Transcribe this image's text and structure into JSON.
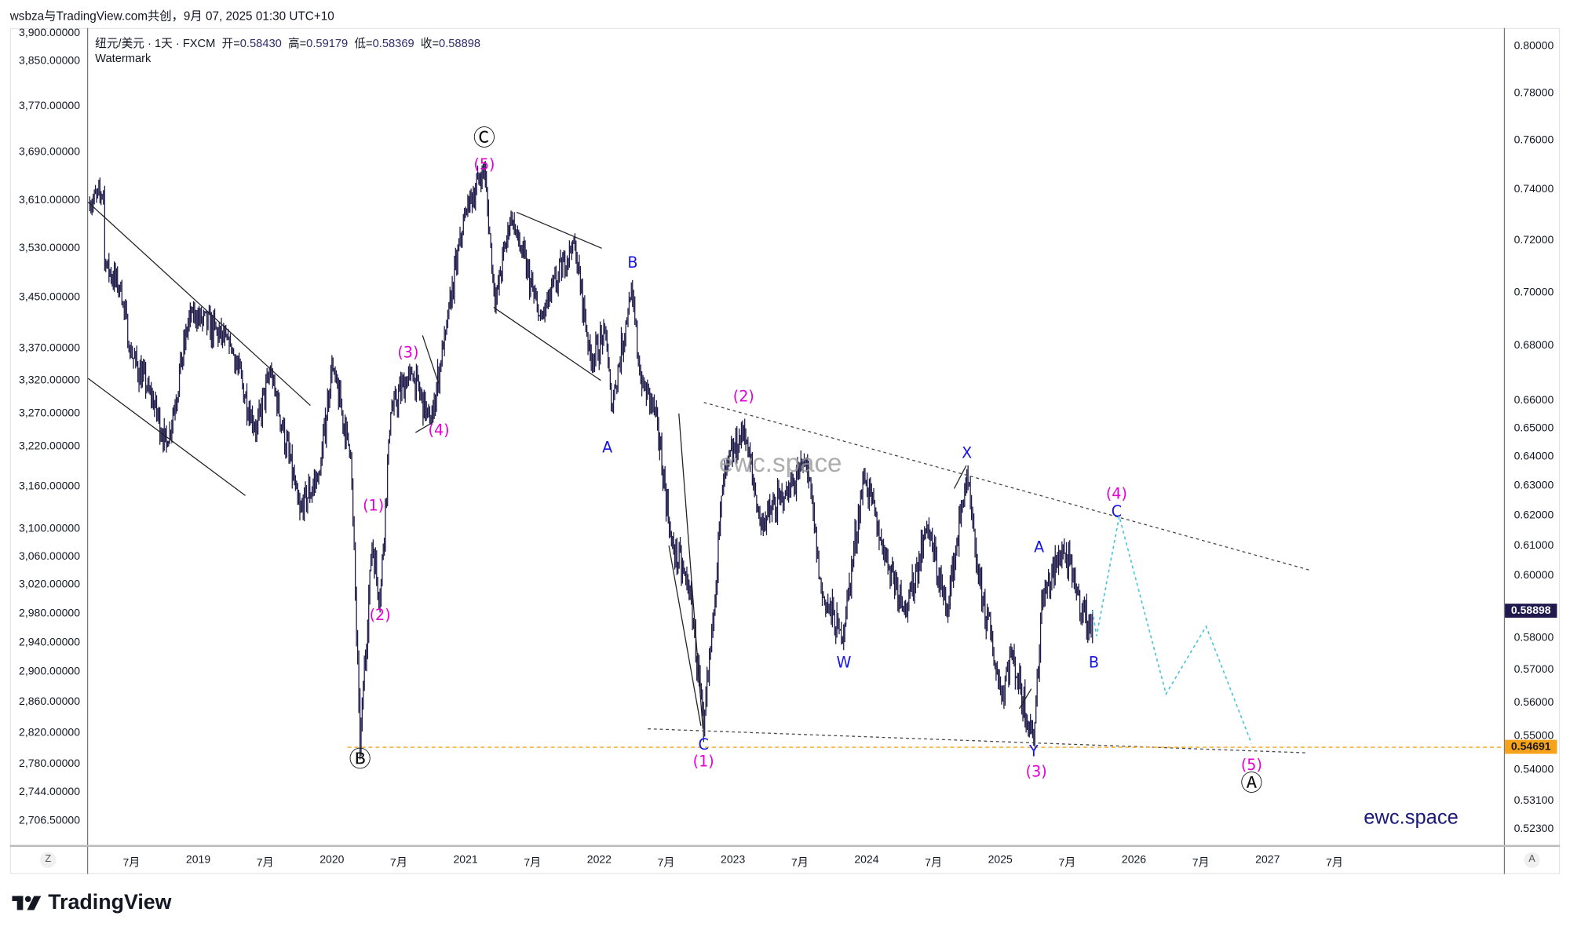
{
  "header": {
    "title": "wsbza与TradingView.com共创，9月 07, 2025 01:30 UTC+10"
  },
  "legend": {
    "symbol": "纽元/美元 · 1天 · FXCM",
    "open_label": "开=",
    "open": "0.58430",
    "high_label": "高=",
    "high": "0.59179",
    "low_label": "低=",
    "low": "0.58369",
    "close_label": "收=",
    "close": "0.58898",
    "watermark_label": "Watermark"
  },
  "colors": {
    "candle": "#1c1848",
    "magenta": "#e600d6",
    "blue": "#1515e8",
    "projection": "#4cc3e0",
    "orange": "#f7a21b",
    "price_badge": "#1e1a4d"
  },
  "chart_data": {
    "type": "line",
    "title": "纽元/美元 1天 FXCM",
    "scale": "log",
    "right_axis": {
      "ticks": [
        "0.80000",
        "0.78000",
        "0.76000",
        "0.74000",
        "0.72000",
        "0.70000",
        "0.68000",
        "0.66000",
        "0.65000",
        "0.64000",
        "0.63000",
        "0.62000",
        "0.61000",
        "0.60000",
        "0.58000",
        "0.57000",
        "0.56000",
        "0.55000",
        "0.54000",
        "0.53100",
        "0.52300"
      ]
    },
    "left_axis": {
      "ticks": [
        "3,900.00000",
        "3,850.00000",
        "3,770.00000",
        "3,690.00000",
        "3,610.00000",
        "3,530.00000",
        "3,450.00000",
        "3,370.00000",
        "3,320.00000",
        "3,270.00000",
        "3,220.00000",
        "3,160.00000",
        "3,100.00000",
        "3,060.00000",
        "3,020.00000",
        "2,980.00000",
        "2,940.00000",
        "2,900.00000",
        "2,860.00000",
        "2,820.00000",
        "2,780.00000",
        "2,744.00000",
        "2,706.50000"
      ]
    },
    "x_axis": {
      "ticks": [
        "7月",
        "2019",
        "7月",
        "2020",
        "7月",
        "2021",
        "7月",
        "2022",
        "7月",
        "2023",
        "7月",
        "2024",
        "7月",
        "2025",
        "7月",
        "2026",
        "7月",
        "2027",
        "7月"
      ],
      "range": [
        2018.17,
        2027.75
      ]
    },
    "ylim": [
      0.518,
      0.81
    ],
    "last_price": "0.58898",
    "support_level": "0.54691",
    "price_path": [
      [
        2018.18,
        0.734
      ],
      [
        2018.29,
        0.739
      ],
      [
        2018.3,
        0.712
      ],
      [
        2018.42,
        0.701
      ],
      [
        2018.49,
        0.678
      ],
      [
        2018.64,
        0.663
      ],
      [
        2018.77,
        0.644
      ],
      [
        2018.94,
        0.693
      ],
      [
        2019.24,
        0.681
      ],
      [
        2019.43,
        0.649
      ],
      [
        2019.54,
        0.671
      ],
      [
        2019.76,
        0.622
      ],
      [
        2019.91,
        0.635
      ],
      [
        2020.0,
        0.673
      ],
      [
        2020.14,
        0.641
      ],
      [
        2020.21,
        0.547
      ],
      [
        2020.3,
        0.611
      ],
      [
        2020.36,
        0.592
      ],
      [
        2020.44,
        0.656
      ],
      [
        2020.59,
        0.671
      ],
      [
        2020.74,
        0.652
      ],
      [
        2020.85,
        0.686
      ],
      [
        2021.0,
        0.732
      ],
      [
        2021.14,
        0.749
      ],
      [
        2021.22,
        0.696
      ],
      [
        2021.34,
        0.73
      ],
      [
        2021.56,
        0.69
      ],
      [
        2021.81,
        0.72
      ],
      [
        2021.94,
        0.674
      ],
      [
        2022.05,
        0.686
      ],
      [
        2022.09,
        0.657
      ],
      [
        2022.24,
        0.701
      ],
      [
        2022.31,
        0.667
      ],
      [
        2022.42,
        0.657
      ],
      [
        2022.54,
        0.611
      ],
      [
        2022.68,
        0.595
      ],
      [
        2022.78,
        0.552
      ],
      [
        2022.85,
        0.586
      ],
      [
        2022.93,
        0.634
      ],
      [
        2023.08,
        0.65
      ],
      [
        2023.21,
        0.617
      ],
      [
        2023.4,
        0.628
      ],
      [
        2023.55,
        0.639
      ],
      [
        2023.66,
        0.595
      ],
      [
        2023.82,
        0.58
      ],
      [
        2023.98,
        0.634
      ],
      [
        2024.11,
        0.611
      ],
      [
        2024.3,
        0.589
      ],
      [
        2024.45,
        0.617
      ],
      [
        2024.6,
        0.589
      ],
      [
        2024.75,
        0.634
      ],
      [
        2024.82,
        0.604
      ],
      [
        2025.01,
        0.562
      ],
      [
        2025.08,
        0.576
      ],
      [
        2025.25,
        0.549
      ],
      [
        2025.31,
        0.592
      ],
      [
        2025.47,
        0.609
      ],
      [
        2025.57,
        0.595
      ],
      [
        2025.68,
        0.582
      ],
      [
        2025.69,
        0.589
      ]
    ],
    "projection": [
      [
        2025.72,
        0.581
      ],
      [
        2025.89,
        0.62
      ],
      [
        2026.24,
        0.563
      ],
      [
        2026.54,
        0.584
      ],
      [
        2026.88,
        0.548
      ]
    ],
    "annotations": [
      {
        "text": "Ⓒ",
        "date": 2021.14,
        "price": 0.761,
        "color": "black"
      },
      {
        "text": "(5)",
        "date": 2021.14,
        "price": 0.751,
        "color": "magenta"
      },
      {
        "text": "B",
        "date": 2022.25,
        "price": 0.712,
        "color": "blue"
      },
      {
        "text": "A",
        "date": 2022.06,
        "price": 0.644,
        "color": "blue"
      },
      {
        "text": "(2)",
        "date": 2023.08,
        "price": 0.662,
        "color": "magenta"
      },
      {
        "text": "X",
        "date": 2024.75,
        "price": 0.642,
        "color": "blue"
      },
      {
        "text": "(4)",
        "date": 2025.87,
        "price": 0.628,
        "color": "magenta"
      },
      {
        "text": "C",
        "date": 2025.87,
        "price": 0.622,
        "color": "blue"
      },
      {
        "text": "A",
        "date": 2025.29,
        "price": 0.61,
        "color": "blue"
      },
      {
        "text": "B",
        "date": 2025.7,
        "price": 0.573,
        "color": "blue"
      },
      {
        "text": "W",
        "date": 2023.83,
        "price": 0.573,
        "color": "blue"
      },
      {
        "text": "C",
        "date": 2022.78,
        "price": 0.548,
        "color": "blue"
      },
      {
        "text": "(1)",
        "date": 2022.78,
        "price": 0.543,
        "color": "magenta"
      },
      {
        "text": "Y",
        "date": 2025.25,
        "price": 0.546,
        "color": "blue"
      },
      {
        "text": "(3)",
        "date": 2025.27,
        "price": 0.54,
        "color": "magenta"
      },
      {
        "text": "(5)",
        "date": 2026.88,
        "price": 0.542,
        "color": "magenta"
      },
      {
        "text": "Ⓐ",
        "date": 2026.88,
        "price": 0.536,
        "color": "black"
      },
      {
        "text": "Ⓑ",
        "date": 2020.21,
        "price": 0.543,
        "color": "black"
      },
      {
        "text": "(1)",
        "date": 2020.31,
        "price": 0.624,
        "color": "magenta"
      },
      {
        "text": "(2)",
        "date": 2020.36,
        "price": 0.588,
        "color": "magenta"
      },
      {
        "text": "(3)",
        "date": 2020.57,
        "price": 0.678,
        "color": "magenta"
      },
      {
        "text": "(4)",
        "date": 2020.8,
        "price": 0.65,
        "color": "magenta"
      }
    ]
  },
  "watermarks": {
    "center": "ewc.space",
    "corner": "ewc.space"
  },
  "axis_buttons": {
    "left": "Z",
    "right": "A"
  },
  "footer": {
    "brand": "TradingView"
  }
}
